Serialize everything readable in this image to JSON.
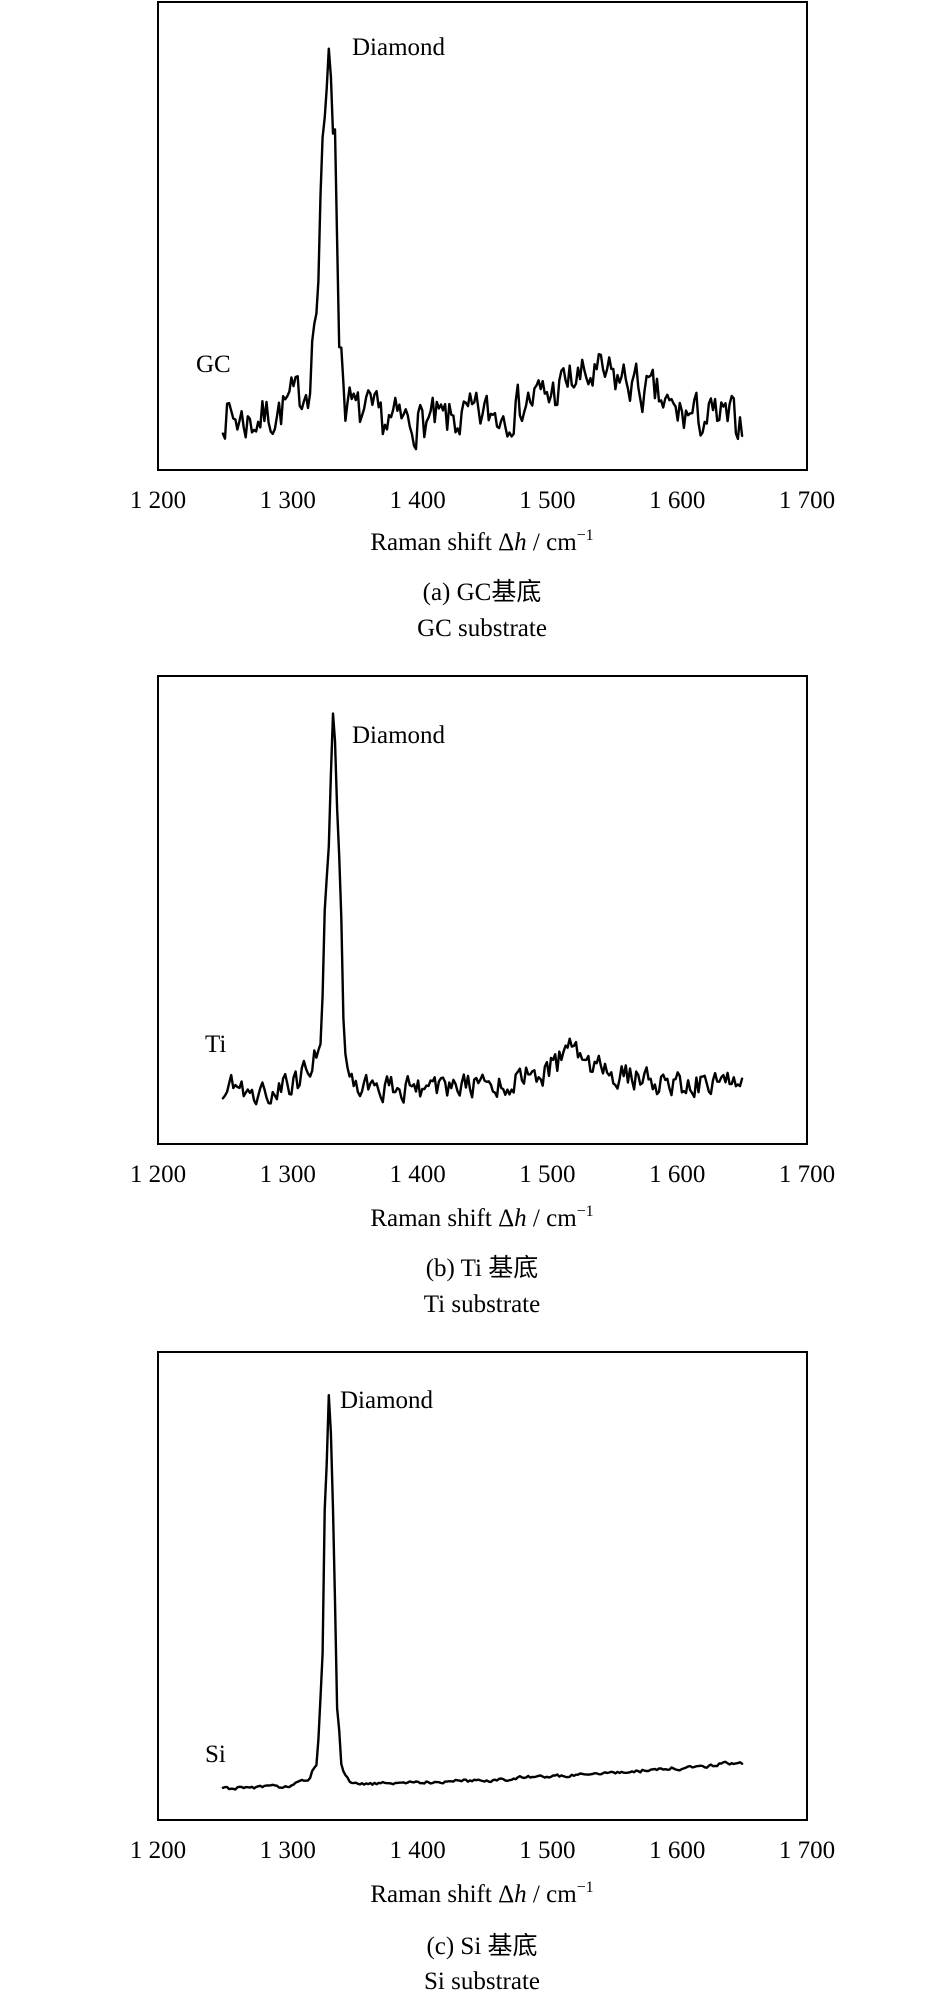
{
  "chart_data": [
    {
      "type": "line",
      "panel_id": "a",
      "xlabel_main": "Raman shift Δ",
      "xlabel_var": "h",
      "xlabel_unit": " / cm",
      "xlabel_exp": "−1",
      "xlim": [
        1200,
        1700
      ],
      "xticks": [
        1200,
        1300,
        1400,
        1500,
        1600,
        1700
      ],
      "xtick_labels": [
        "1 200",
        "1 300",
        "1 400",
        "1 500",
        "1 600",
        "1 700"
      ],
      "y_axis": "unlabeled relative intensity (0 = baseline, 1 = diamond peak)",
      "ylim": [
        -0.15,
        1.1
      ],
      "caption_line1": "(a) GC基底",
      "caption_line2": "GC substrate",
      "series_label": "GC",
      "peak_label": "Diamond",
      "noise": 0.06,
      "noise_seed": 7,
      "series": [
        {
          "x": [
            1250,
            1270,
            1290,
            1305,
            1315,
            1322,
            1328,
            1332,
            1336,
            1340,
            1345,
            1355,
            1380,
            1420,
            1460,
            1500,
            1520,
            1540,
            1560,
            1580,
            1600,
            1620,
            1650
          ],
          "y": [
            0.0,
            -0.02,
            0.0,
            0.04,
            0.07,
            0.28,
            0.75,
            1.0,
            0.75,
            0.2,
            0.03,
            0.0,
            -0.02,
            -0.02,
            0.0,
            0.05,
            0.09,
            0.1,
            0.09,
            0.05,
            0.0,
            -0.01,
            -0.02
          ]
        }
      ]
    },
    {
      "type": "line",
      "panel_id": "b",
      "xlabel_main": "Raman shift Δ",
      "xlabel_var": "h",
      "xlabel_unit": " / cm",
      "xlabel_exp": "−1",
      "xlim": [
        1200,
        1700
      ],
      "xticks": [
        1200,
        1300,
        1400,
        1500,
        1600,
        1700
      ],
      "xtick_labels": [
        "1 200",
        "1 300",
        "1 400",
        "1 500",
        "1 600",
        "1 700"
      ],
      "y_axis": "unlabeled relative intensity (0 = baseline, 1 = diamond peak)",
      "ylim": [
        -0.15,
        1.1
      ],
      "caption_line1": "(b) Ti 基底",
      "caption_line2": "Ti substrate",
      "series_label": "Ti",
      "peak_label": "Diamond",
      "noise": 0.035,
      "noise_seed": 19,
      "series": [
        {
          "x": [
            1250,
            1280,
            1300,
            1315,
            1325,
            1330,
            1335,
            1340,
            1344,
            1350,
            1380,
            1420,
            1460,
            1490,
            1505,
            1515,
            1525,
            1540,
            1560,
            1600,
            1650
          ],
          "y": [
            0.0,
            -0.01,
            0.0,
            0.04,
            0.12,
            0.55,
            1.0,
            0.58,
            0.1,
            0.02,
            0.0,
            0.0,
            0.01,
            0.03,
            0.06,
            0.1,
            0.08,
            0.05,
            0.03,
            0.01,
            0.01
          ]
        }
      ]
    },
    {
      "type": "line",
      "panel_id": "c",
      "xlabel_main": "Raman shift Δ",
      "xlabel_var": "h",
      "xlabel_unit": " / cm",
      "xlabel_exp": "−1",
      "xlim": [
        1200,
        1700
      ],
      "xticks": [
        1200,
        1300,
        1400,
        1500,
        1600,
        1700
      ],
      "xtick_labels": [
        "1 200",
        "1 300",
        "1 400",
        "1 500",
        "1 600",
        "1 700"
      ],
      "y_axis": "unlabeled relative intensity (0 = baseline, 1 = diamond peak)",
      "ylim": [
        -0.08,
        1.1
      ],
      "caption_line1": "(c) Si 基底",
      "caption_line2": "Si substrate",
      "series_label": "Si",
      "peak_label": "Diamond",
      "noise": 0.004,
      "noise_seed": 31,
      "series": [
        {
          "x": [
            1250,
            1300,
            1315,
            1322,
            1326,
            1329,
            1332,
            1335,
            1338,
            1342,
            1350,
            1400,
            1450,
            1500,
            1550,
            1600,
            1650
          ],
          "y": [
            0.0,
            0.005,
            0.02,
            0.06,
            0.25,
            0.75,
            1.0,
            0.7,
            0.2,
            0.04,
            0.01,
            0.015,
            0.02,
            0.03,
            0.04,
            0.05,
            0.065
          ]
        }
      ]
    }
  ]
}
